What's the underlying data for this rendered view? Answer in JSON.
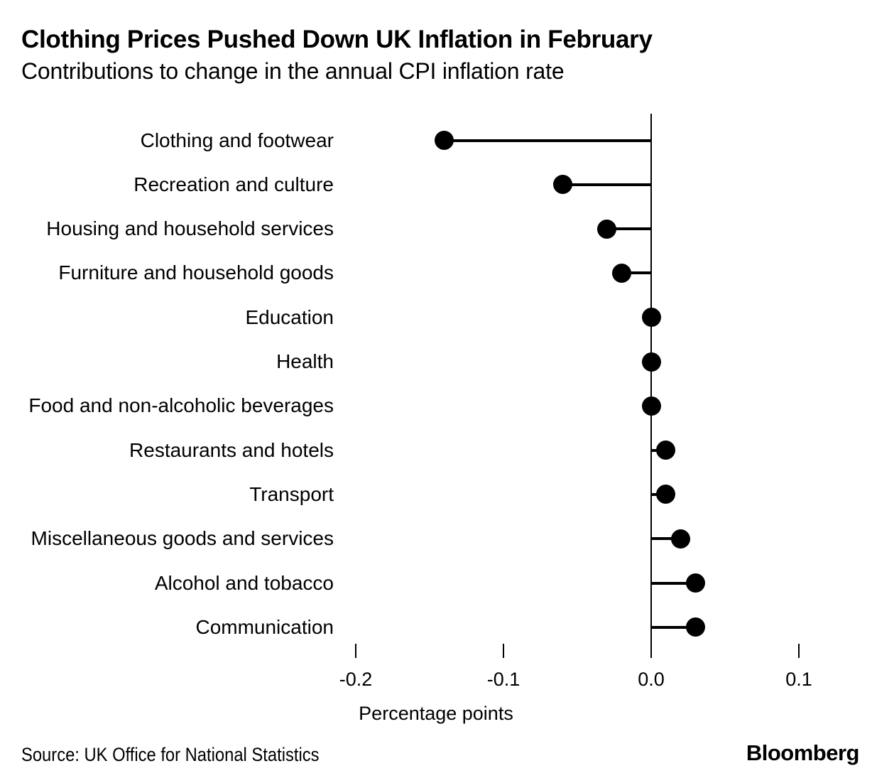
{
  "header": {
    "title": "Clothing Prices Pushed Down UK Inflation in February",
    "subtitle": "Contributions to change in the annual CPI inflation rate"
  },
  "chart_data": {
    "type": "bar",
    "variant": "horizontal-lollipop",
    "title": "Clothing Prices Pushed Down UK Inflation in February",
    "subtitle": "Contributions to change in the annual CPI inflation rate",
    "categories": [
      "Clothing and footwear",
      "Recreation and culture",
      "Housing and household services",
      "Furniture and household goods",
      "Education",
      "Health",
      "Food and non-alcoholic beverages",
      "Restaurants and hotels",
      "Transport",
      "Miscellaneous goods and services",
      "Alcohol and tobacco",
      "Communication"
    ],
    "values": [
      -0.14,
      -0.06,
      -0.03,
      -0.02,
      0.0,
      0.0,
      0.0,
      0.01,
      0.01,
      0.02,
      0.03,
      0.03
    ],
    "xlabel": "Percentage points",
    "xlim": [
      -0.25,
      0.15
    ],
    "x_ticks": [
      -0.2,
      -0.1,
      0.0,
      0.1
    ],
    "x_tick_labels": [
      "-0.2",
      "-0.1",
      "0.0",
      "0.1"
    ],
    "grid": false,
    "legend": false,
    "marker_color": "#000000",
    "axis_color": "#000000",
    "background": "#ffffff"
  },
  "footer": {
    "source": "Source: UK Office for National Statistics",
    "brand": "Bloomberg"
  }
}
